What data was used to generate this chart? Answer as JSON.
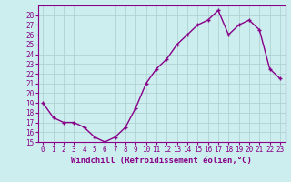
{
  "x": [
    0,
    1,
    2,
    3,
    4,
    5,
    6,
    7,
    8,
    9,
    10,
    11,
    12,
    13,
    14,
    15,
    16,
    17,
    18,
    19,
    20,
    21,
    22,
    23
  ],
  "y": [
    19,
    17.5,
    17,
    17,
    16.5,
    15.5,
    15,
    15.5,
    16.5,
    18.5,
    21,
    22.5,
    23.5,
    25,
    26,
    27,
    27.5,
    28.5,
    26,
    27,
    27.5,
    26.5,
    22.5,
    21.5
  ],
  "line_color": "#880088",
  "marker": "+",
  "marker_color": "#880088",
  "bg_color": "#cceeee",
  "grid_color": "#aacccc",
  "xlabel": "Windchill (Refroidissement éolien,°C)",
  "ylim": [
    15,
    29
  ],
  "xlim": [
    -0.5,
    23.5
  ],
  "yticks": [
    15,
    16,
    17,
    18,
    19,
    20,
    21,
    22,
    23,
    24,
    25,
    26,
    27,
    28
  ],
  "xticks": [
    0,
    1,
    2,
    3,
    4,
    5,
    6,
    7,
    8,
    9,
    10,
    11,
    12,
    13,
    14,
    15,
    16,
    17,
    18,
    19,
    20,
    21,
    22,
    23
  ],
  "tick_fontsize": 5.5,
  "xlabel_fontsize": 6.5,
  "line_width": 1.0,
  "marker_size": 3.5
}
